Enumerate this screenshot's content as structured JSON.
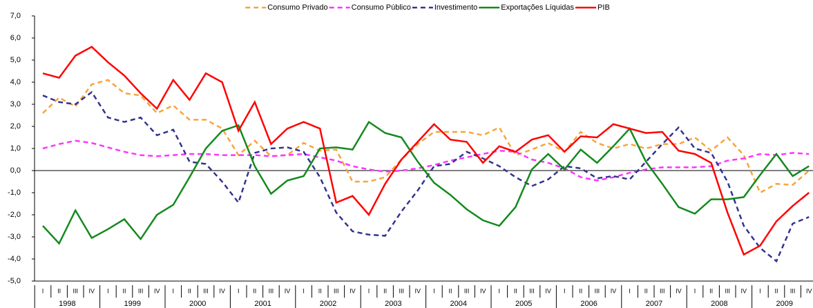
{
  "chart_data": {
    "type": "line",
    "categories": [
      "I",
      "II",
      "III",
      "IV",
      "I",
      "II",
      "III",
      "IV",
      "I",
      "II",
      "III",
      "IV",
      "I",
      "II",
      "III",
      "IV",
      "I",
      "II",
      "III",
      "IV",
      "I",
      "II",
      "III",
      "IV",
      "I",
      "II",
      "III",
      "IV",
      "I",
      "II",
      "III",
      "IV",
      "I",
      "II",
      "III",
      "IV",
      "I",
      "II",
      "III",
      "IV",
      "I",
      "II",
      "III",
      "IV",
      "I",
      "II",
      "III",
      "IV"
    ],
    "years": [
      "1998",
      "1999",
      "2000",
      "2001",
      "2002",
      "2003",
      "2004",
      "2005",
      "2006",
      "2007",
      "2008",
      "2009"
    ],
    "ylim": [
      -5,
      7
    ],
    "yticks": [
      {
        "value": -5,
        "label": "-5,0"
      },
      {
        "value": -4,
        "label": "-4,0"
      },
      {
        "value": -3,
        "label": "-3,0"
      },
      {
        "value": -2,
        "label": "-2,0"
      },
      {
        "value": -1,
        "label": "-1,0"
      },
      {
        "value": 0,
        "label": "0,0"
      },
      {
        "value": 1,
        "label": "1,0"
      },
      {
        "value": 2,
        "label": "2,0"
      },
      {
        "value": 3,
        "label": "3,0"
      },
      {
        "value": 4,
        "label": "4,0"
      },
      {
        "value": 5,
        "label": "5,0"
      },
      {
        "value": 6,
        "label": "6,0"
      },
      {
        "value": 7,
        "label": "7,0"
      }
    ],
    "legend": "top",
    "series": [
      {
        "name": "Consumo Privado",
        "color": "#f7a43a",
        "dashed": true,
        "values": [
          2.6,
          3.3,
          2.9,
          3.9,
          4.1,
          3.5,
          3.4,
          2.6,
          2.95,
          2.3,
          2.3,
          1.9,
          0.7,
          1.35,
          0.65,
          0.7,
          1.25,
          0.9,
          0.95,
          -0.5,
          -0.5,
          -0.3,
          0.5,
          1.2,
          1.75,
          1.75,
          1.75,
          1.6,
          1.95,
          0.7,
          0.95,
          1.25,
          0.85,
          1.75,
          1.25,
          1.0,
          1.2,
          1.0,
          1.2,
          1.2,
          1.5,
          0.9,
          1.5,
          0.7,
          -1.0,
          -0.6,
          -0.65,
          0.0
        ]
      },
      {
        "name": "Consumo Público",
        "color": "#ff33ff",
        "dashed": true,
        "values": [
          1.0,
          1.2,
          1.35,
          1.25,
          1.05,
          0.85,
          0.7,
          0.65,
          0.7,
          0.75,
          0.75,
          0.7,
          0.7,
          0.7,
          0.65,
          0.7,
          0.75,
          0.6,
          0.45,
          0.2,
          0.05,
          -0.05,
          0.0,
          0.1,
          0.25,
          0.45,
          0.6,
          0.75,
          0.9,
          0.85,
          0.5,
          0.35,
          0.1,
          -0.3,
          -0.45,
          -0.3,
          -0.1,
          0.05,
          0.15,
          0.15,
          0.15,
          0.2,
          0.45,
          0.55,
          0.75,
          0.7,
          0.8,
          0.75
        ]
      },
      {
        "name": "Investimento",
        "color": "#33338f",
        "dashed": true,
        "values": [
          3.4,
          3.1,
          3.0,
          3.55,
          2.4,
          2.2,
          2.4,
          1.6,
          1.85,
          0.4,
          0.3,
          -0.5,
          -1.45,
          0.8,
          1.0,
          1.05,
          0.85,
          -0.3,
          -1.9,
          -2.75,
          -2.9,
          -2.95,
          -1.85,
          -0.9,
          0.2,
          0.3,
          0.85,
          0.55,
          0.2,
          -0.3,
          -0.7,
          -0.4,
          0.2,
          0.1,
          -0.35,
          -0.25,
          -0.4,
          0.4,
          1.2,
          1.95,
          1.0,
          0.8,
          -0.5,
          -2.5,
          -3.5,
          -4.1,
          -2.4,
          -2.1
        ]
      },
      {
        "name": "Exportações Líquidas",
        "color": "#138a1e",
        "dashed": false,
        "values": [
          -2.5,
          -3.3,
          -1.8,
          -3.05,
          -2.65,
          -2.2,
          -3.1,
          -2.0,
          -1.55,
          -0.3,
          1.0,
          1.8,
          2.05,
          0.2,
          -1.05,
          -0.45,
          -0.25,
          1.0,
          1.05,
          0.95,
          2.2,
          1.7,
          1.5,
          0.4,
          -0.55,
          -1.1,
          -1.75,
          -2.25,
          -2.5,
          -1.65,
          0.05,
          0.75,
          0.05,
          0.95,
          0.35,
          1.1,
          1.9,
          0.4,
          -0.6,
          -1.65,
          -1.95,
          -1.3,
          -1.3,
          -1.2,
          -0.2,
          0.75,
          -0.25,
          0.2
        ]
      },
      {
        "name": "PIB",
        "color": "#ff0000",
        "dashed": false,
        "values": [
          4.4,
          4.2,
          5.2,
          5.6,
          4.9,
          4.3,
          3.5,
          2.8,
          4.1,
          3.2,
          4.4,
          4.0,
          1.8,
          3.1,
          1.2,
          1.9,
          2.2,
          1.9,
          -1.45,
          -1.15,
          -2.0,
          -0.6,
          0.5,
          1.3,
          2.1,
          1.4,
          1.3,
          0.35,
          1.1,
          0.85,
          1.4,
          1.6,
          0.85,
          1.55,
          1.5,
          2.1,
          1.9,
          1.7,
          1.75,
          0.9,
          0.75,
          0.35,
          -1.9,
          -3.8,
          -3.4,
          -2.3,
          -1.6,
          -1.0
        ]
      }
    ]
  }
}
